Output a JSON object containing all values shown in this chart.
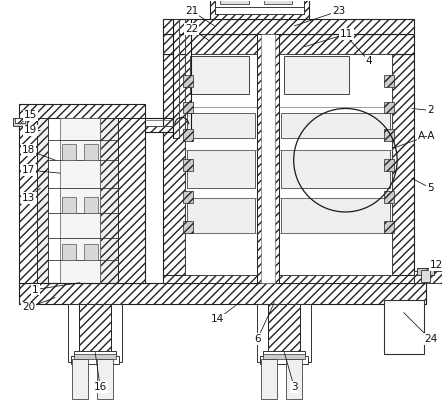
{
  "bg_color": "#ffffff",
  "line_color": "#1a1a1a",
  "fig_width": 4.44,
  "fig_height": 4.08,
  "dpi": 100
}
